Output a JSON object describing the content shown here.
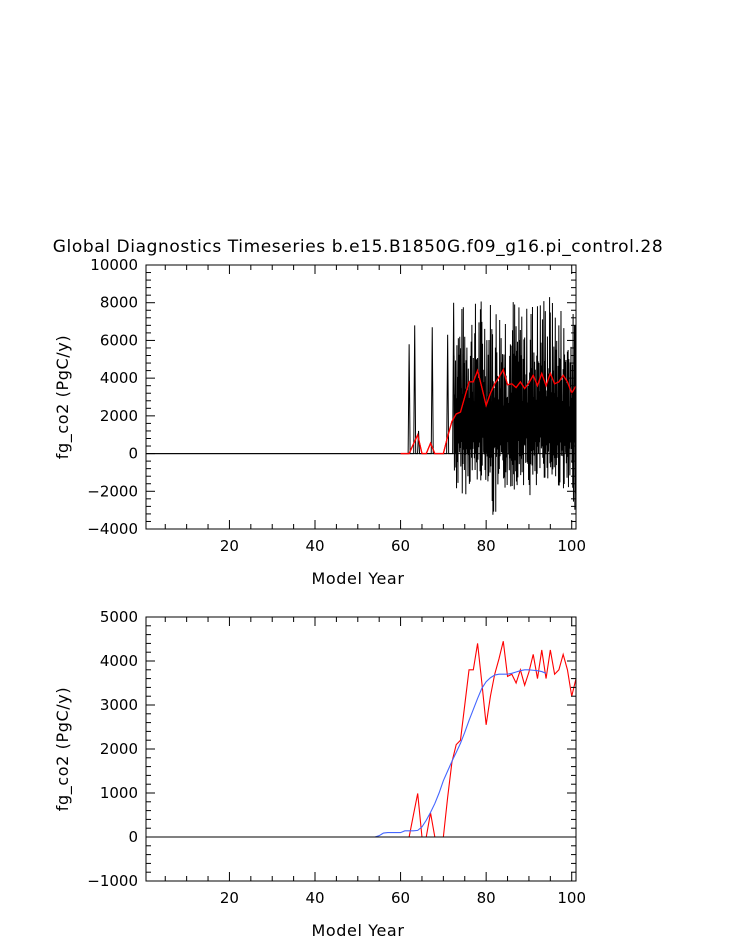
{
  "title": "Global Diagnostics Timeseries b.e15.B1850G.f09_g16.pi_control.28",
  "colors": {
    "monthly": "#000000",
    "annual": "#ff0000",
    "smooth": "#4466ff",
    "axis": "#000000"
  },
  "chart_data": [
    {
      "type": "line",
      "xlabel": "Model Year",
      "ylabel": "fg_co2 (PgC/y)",
      "xlim": [
        0.5,
        101
      ],
      "ylim": [
        -4000,
        10000
      ],
      "xticks": [
        20,
        40,
        60,
        80,
        100
      ],
      "yticks": [
        -4000,
        -2000,
        0,
        2000,
        4000,
        6000,
        8000,
        10000
      ],
      "grid": false,
      "series": [
        {
          "key": "monthly",
          "x_start": 0.5,
          "x_step": 0.0833,
          "values_note_free": true,
          "segments": [
            {
              "x0": 0.5,
              "x1": 61.9,
              "y": 0
            },
            {
              "x": 62.0,
              "y": 5800
            },
            {
              "x": 63.3,
              "y": 6800
            },
            {
              "x": 64.2,
              "y": 1200
            },
            {
              "x": 67.4,
              "y": 6700
            },
            {
              "x": 71.0,
              "y": 6300
            },
            {
              "x": 72.4,
              "y": 8000
            }
          ],
          "dense_from": 72.5,
          "dense_to": 101,
          "dense_min": [
            -2200,
            -1800,
            -1500,
            -3800,
            -2000,
            -1700,
            -2500,
            -1400,
            -1900,
            -3000
          ],
          "dense_max": [
            8000,
            8200,
            8500,
            8300,
            8600,
            7900,
            8400,
            8800,
            8200,
            7600
          ]
        },
        {
          "key": "annual",
          "x": [
            60,
            61,
            62,
            63,
            64,
            65,
            66,
            67,
            68,
            69,
            70,
            71,
            72,
            73,
            74,
            75,
            76,
            77,
            78,
            79,
            80,
            81,
            82,
            83,
            84,
            85,
            86,
            87,
            88,
            89,
            90,
            91,
            92,
            93,
            94,
            95,
            96,
            97,
            98,
            99,
            100,
            101
          ],
          "y": [
            0,
            0,
            0,
            500,
            990,
            0,
            0,
            550,
            0,
            0,
            0,
            900,
            1700,
            2100,
            2200,
            3000,
            3800,
            3800,
            4400,
            3500,
            2550,
            3200,
            3700,
            4050,
            4450,
            3650,
            3700,
            3500,
            3800,
            3450,
            3750,
            4150,
            3600,
            4250,
            3600,
            4250,
            3700,
            3800,
            4150,
            3800,
            3200,
            3600
          ]
        }
      ]
    },
    {
      "type": "line",
      "xlabel": "Model Year",
      "ylabel": "fg_co2 (PgC/y)",
      "xlim": [
        0.5,
        101
      ],
      "ylim": [
        -1000,
        5000
      ],
      "xticks": [
        20,
        40,
        60,
        80,
        100
      ],
      "yticks": [
        -1000,
        0,
        1000,
        2000,
        3000,
        4000,
        5000
      ],
      "grid": false,
      "series": [
        {
          "key": "annual",
          "x": [
            1,
            60,
            61,
            62,
            63,
            64,
            65,
            66,
            67,
            68,
            69,
            70,
            71,
            72,
            73,
            74,
            75,
            76,
            77,
            78,
            79,
            80,
            81,
            82,
            83,
            84,
            85,
            86,
            87,
            88,
            89,
            90,
            91,
            92,
            93,
            94,
            95,
            96,
            97,
            98,
            99,
            100,
            101
          ],
          "y": [
            0,
            0,
            0,
            0,
            500,
            990,
            0,
            0,
            550,
            0,
            0,
            0,
            900,
            1700,
            2100,
            2200,
            3000,
            3800,
            3800,
            4400,
            3500,
            2550,
            3200,
            3700,
            4050,
            4450,
            3650,
            3700,
            3500,
            3800,
            3450,
            3750,
            4150,
            3600,
            4250,
            3600,
            4250,
            3700,
            3800,
            4150,
            3800,
            3200,
            3600
          ]
        },
        {
          "key": "smooth",
          "x": [
            54,
            55,
            56,
            57,
            58,
            59,
            60,
            61,
            62,
            63,
            64,
            65,
            66,
            67,
            68,
            69,
            70,
            71,
            72,
            73,
            74,
            75,
            76,
            77,
            78,
            79,
            80,
            81,
            82,
            83,
            84,
            85,
            86,
            87,
            88,
            89,
            90,
            91,
            92,
            93,
            94
          ],
          "y": [
            0,
            30,
            90,
            100,
            100,
            100,
            100,
            140,
            140,
            140,
            150,
            230,
            380,
            560,
            760,
            1000,
            1280,
            1500,
            1720,
            1920,
            2130,
            2380,
            2650,
            2900,
            3150,
            3380,
            3530,
            3620,
            3680,
            3700,
            3700,
            3700,
            3720,
            3750,
            3780,
            3800,
            3800,
            3790,
            3780,
            3760,
            3720
          ]
        },
        {
          "key": "zero",
          "x": [
            1,
            101
          ],
          "y": [
            0,
            0
          ]
        }
      ]
    }
  ]
}
